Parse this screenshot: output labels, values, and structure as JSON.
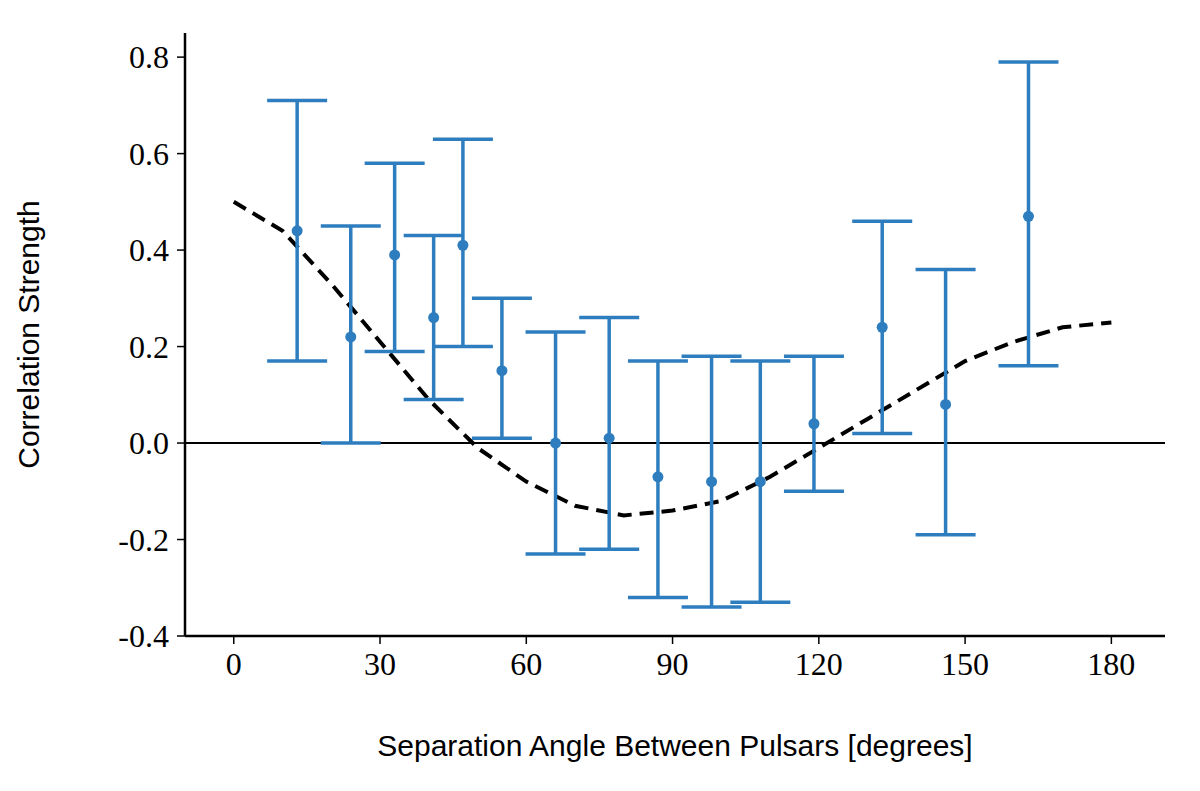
{
  "chart_data": {
    "type": "scatter",
    "x_label": "Separation Angle Between Pulsars [degrees]",
    "y_label": "Correlation Strength",
    "x": [
      13,
      24,
      33,
      41,
      47,
      55,
      66,
      77,
      87,
      98,
      108,
      119,
      133,
      146,
      163
    ],
    "values": [
      0.44,
      0.22,
      0.39,
      0.26,
      0.41,
      0.15,
      0.0,
      0.01,
      -0.07,
      -0.08,
      -0.08,
      0.04,
      0.24,
      0.08,
      0.47
    ],
    "errors": [
      [
        0.27,
        0.27
      ],
      [
        0.22,
        0.23
      ],
      [
        0.2,
        0.19
      ],
      [
        0.17,
        0.17
      ],
      [
        0.21,
        0.22
      ],
      [
        0.14,
        0.15
      ],
      [
        0.23,
        0.23
      ],
      [
        0.23,
        0.25
      ],
      [
        0.25,
        0.24
      ],
      [
        0.26,
        0.26
      ],
      [
        0.25,
        0.25
      ],
      [
        0.14,
        0.14
      ],
      [
        0.22,
        0.22
      ],
      [
        0.27,
        0.28
      ],
      [
        0.31,
        0.32
      ]
    ],
    "color": "#2e7ebf",
    "marker": "circle",
    "curve": {
      "type": "line",
      "color": "#000000",
      "line_style": "dashed",
      "x": [
        0,
        10,
        20,
        30,
        40,
        50,
        60,
        70,
        80,
        90,
        100,
        110,
        120,
        130,
        140,
        150,
        160,
        170,
        180
      ],
      "values": [
        0.5,
        0.44,
        0.33,
        0.21,
        0.09,
        -0.01,
        -0.08,
        -0.13,
        -0.15,
        -0.14,
        -0.12,
        -0.07,
        -0.01,
        0.05,
        0.11,
        0.17,
        0.21,
        0.24,
        0.25
      ]
    },
    "hline": 0,
    "xlim": [
      -10,
      191
    ],
    "xticks": [
      0,
      30,
      60,
      90,
      120,
      150,
      180
    ],
    "ylim": [
      -0.4,
      0.85
    ],
    "yticks": [
      -0.4,
      -0.2,
      {
        "value": 0,
        "label": "0.0"
      },
      0.2,
      0.4,
      0.6,
      0.8
    ],
    "grid": false
  }
}
